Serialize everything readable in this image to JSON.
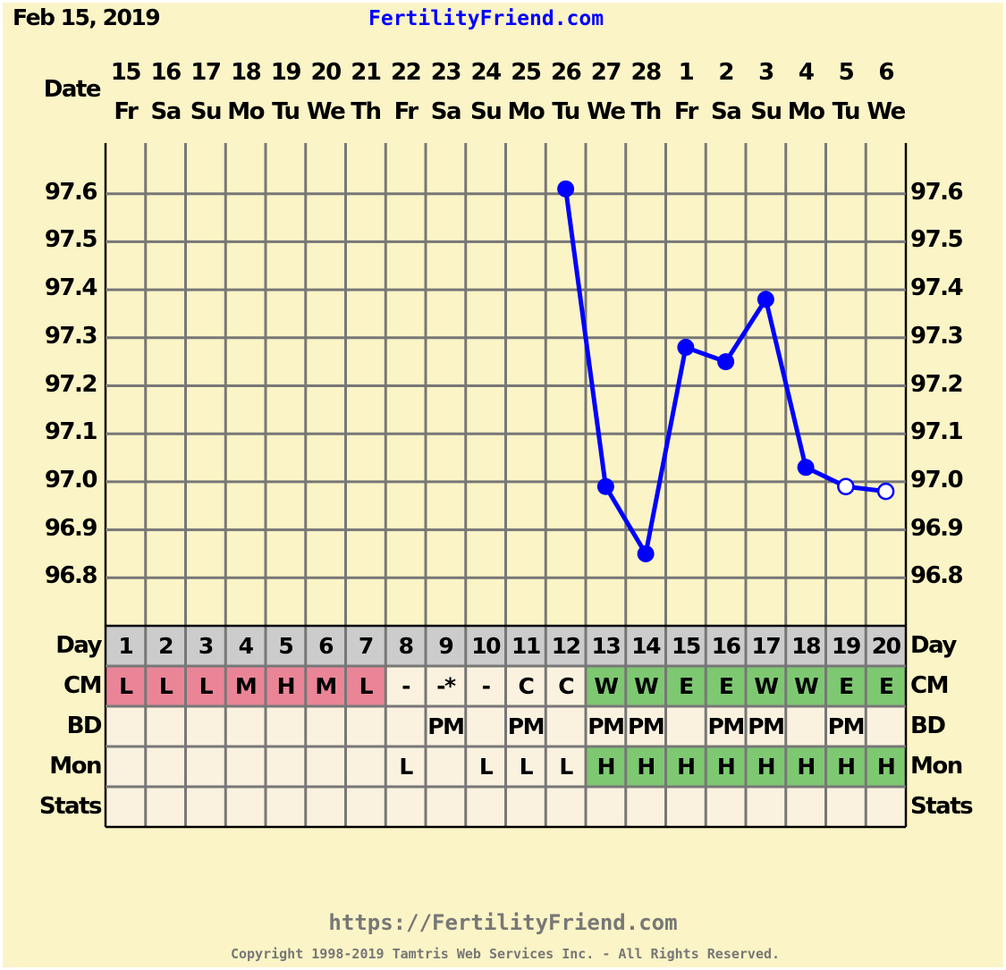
{
  "header": {
    "chart_date": "Feb 15, 2019",
    "site_title": "FertilityFriend.com"
  },
  "row_labels": {
    "date": "Date",
    "day": "Day",
    "cm": "CM",
    "bd": "BD",
    "mon": "Mon",
    "stats": "Stats"
  },
  "colors": {
    "line": "#0000ff",
    "cm_pink": "#ea8597",
    "green": "#7ec872",
    "day_row": "#cccccc",
    "cell": "#faf2df",
    "background": "#fbf4c6",
    "grid": "#777777"
  },
  "chart_data": {
    "type": "line",
    "title": "",
    "xlabel": "",
    "ylabel": "",
    "ylim": [
      96.7,
      97.7
    ],
    "y_ticks": [
      "97.6",
      "97.5",
      "97.4",
      "97.3",
      "97.2",
      "97.1",
      "97.0",
      "96.9",
      "96.8"
    ],
    "grid": true,
    "dates": [
      "15",
      "16",
      "17",
      "18",
      "19",
      "20",
      "21",
      "22",
      "23",
      "24",
      "25",
      "26",
      "27",
      "28",
      "1",
      "2",
      "3",
      "4",
      "5",
      "6"
    ],
    "weekdays": [
      "Fr",
      "Sa",
      "Su",
      "Mo",
      "Tu",
      "We",
      "Th",
      "Fr",
      "Sa",
      "Su",
      "Mo",
      "Tu",
      "We",
      "Th",
      "Fr",
      "Sa",
      "Su",
      "Mo",
      "Tu",
      "We"
    ],
    "cycle_days": [
      "1",
      "2",
      "3",
      "4",
      "5",
      "6",
      "7",
      "8",
      "9",
      "10",
      "11",
      "12",
      "13",
      "14",
      "15",
      "16",
      "17",
      "18",
      "19",
      "20"
    ],
    "series": [
      {
        "x": [
          12,
          13,
          14,
          15,
          16,
          17,
          18,
          19,
          20
        ],
        "values": [
          97.61,
          96.99,
          96.85,
          97.28,
          97.25,
          97.38,
          97.03,
          96.99,
          96.98
        ],
        "open_marker": [
          false,
          false,
          false,
          false,
          false,
          false,
          false,
          true,
          true
        ]
      }
    ],
    "cm": [
      "L",
      "L",
      "L",
      "M",
      "H",
      "M",
      "L",
      "-",
      "-*",
      "-",
      "C",
      "C",
      "W",
      "W",
      "E",
      "E",
      "W",
      "W",
      "E",
      "E"
    ],
    "cm_color": [
      "pink",
      "pink",
      "pink",
      "pink",
      "pink",
      "pink",
      "pink",
      "",
      "",
      "",
      "",
      "",
      "green",
      "green",
      "green",
      "green",
      "green",
      "green",
      "green",
      "green"
    ],
    "bd": [
      "",
      "",
      "",
      "",
      "",
      "",
      "",
      "",
      "PM",
      "",
      "PM",
      "",
      "PM",
      "PM",
      "",
      "PM",
      "PM",
      "",
      "PM",
      ""
    ],
    "mon": [
      "",
      "",
      "",
      "",
      "",
      "",
      "",
      "L",
      "",
      "L",
      "L",
      "L",
      "H",
      "H",
      "H",
      "H",
      "H",
      "H",
      "H",
      "H"
    ],
    "mon_color": [
      "",
      "",
      "",
      "",
      "",
      "",
      "",
      "",
      "",
      "",
      "",
      "",
      "green",
      "green",
      "green",
      "green",
      "green",
      "green",
      "green",
      "green"
    ],
    "stats": [
      "",
      "",
      "",
      "",
      "",
      "",
      "",
      "",
      "",
      "",
      "",
      "",
      "",
      "",
      "",
      "",
      "",
      "",
      "",
      ""
    ]
  },
  "footer": {
    "url": "https://FertilityFriend.com",
    "copyright": "Copyright 1998-2019 Tamtris Web Services Inc. - All Rights Reserved."
  }
}
